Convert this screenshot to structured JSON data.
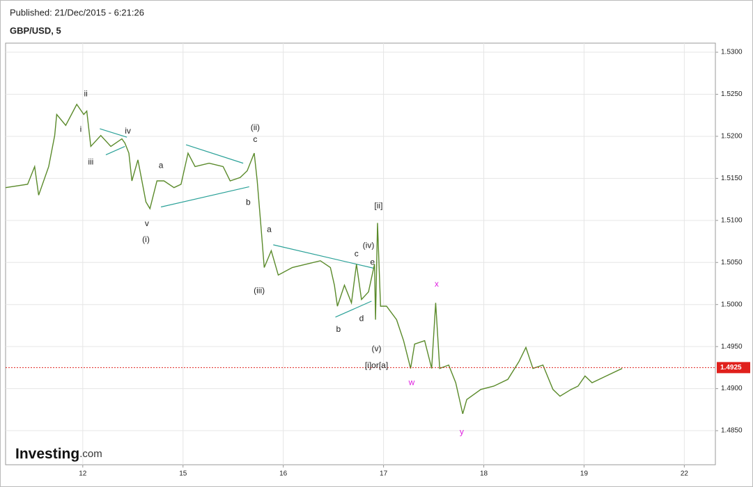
{
  "chart_data": {
    "type": "line",
    "published": "Published: 21/Dec/2015 - 6:21:26",
    "title": "GBP/USD, 5",
    "logo": "Investing",
    "logo_suffix": ".com",
    "xlim": [
      -0.77,
      6.31
    ],
    "xticks": [
      {
        "value": 0,
        "label": "12"
      },
      {
        "value": 1,
        "label": "15"
      },
      {
        "value": 2,
        "label": "16"
      },
      {
        "value": 3,
        "label": "17"
      },
      {
        "value": 4,
        "label": "18"
      },
      {
        "value": 5,
        "label": "19"
      },
      {
        "value": 6,
        "label": "22"
      }
    ],
    "ylim": [
      1.48095,
      1.53108
    ],
    "yticks": [
      {
        "value": 1.485,
        "label": "1.4850"
      },
      {
        "value": 1.49,
        "label": "1.4900"
      },
      {
        "value": 1.495,
        "label": "1.4950"
      },
      {
        "value": 1.5,
        "label": "1.5000"
      },
      {
        "value": 1.505,
        "label": "1.5050"
      },
      {
        "value": 1.51,
        "label": "1.5100"
      },
      {
        "value": 1.515,
        "label": "1.5150"
      },
      {
        "value": 1.52,
        "label": "1.5200"
      },
      {
        "value": 1.525,
        "label": "1.5250"
      },
      {
        "value": 1.53,
        "label": "1.5300"
      }
    ],
    "grid": true,
    "last_price": 1.4925,
    "last_price_color": "#e0201c",
    "series": [
      {
        "name": "GBP/USD",
        "color": "#5a8a2a",
        "x": [
          -0.77,
          -0.55,
          -0.48,
          -0.44,
          -0.34,
          -0.28,
          -0.26,
          -0.17,
          -0.06,
          0.01,
          0.04,
          0.08,
          0.18,
          0.28,
          0.39,
          0.42,
          0.46,
          0.49,
          0.55,
          0.63,
          0.67,
          0.74,
          0.81,
          0.91,
          0.98,
          1.05,
          1.12,
          1.26,
          1.4,
          1.47,
          1.57,
          1.64,
          1.71,
          1.74,
          1.78,
          1.81,
          1.88,
          1.95,
          2.09,
          2.23,
          2.37,
          2.47,
          2.51,
          2.54,
          2.61,
          2.68,
          2.73,
          2.78,
          2.85,
          2.91,
          2.92,
          2.94,
          2.97,
          3.03,
          3.13,
          3.2,
          3.27,
          3.31,
          3.41,
          3.48,
          3.52,
          3.56,
          3.65,
          3.72,
          3.79,
          3.83,
          3.97,
          4.1,
          4.24,
          4.35,
          4.42,
          4.49,
          4.59,
          4.69,
          4.76,
          4.87,
          4.94,
          5.01,
          5.08,
          5.22,
          5.38
        ],
        "values": [
          1.5139,
          1.5143,
          1.5164,
          1.513,
          1.5164,
          1.5201,
          1.5226,
          1.5213,
          1.5238,
          1.5226,
          1.523,
          1.5188,
          1.5201,
          1.5188,
          1.5197,
          1.5192,
          1.518,
          1.5147,
          1.5172,
          1.5122,
          1.5114,
          1.5147,
          1.5147,
          1.5139,
          1.5143,
          1.518,
          1.5164,
          1.5168,
          1.5164,
          1.5147,
          1.5151,
          1.5159,
          1.518,
          1.5147,
          1.5089,
          1.5044,
          1.5064,
          1.5035,
          1.5044,
          1.5048,
          1.5052,
          1.5044,
          1.5023,
          1.4998,
          1.5023,
          1.5002,
          1.5048,
          1.5006,
          1.5015,
          1.5048,
          1.4982,
          1.5097,
          1.4998,
          1.4998,
          1.4982,
          1.4957,
          1.4924,
          1.4953,
          1.4957,
          1.4924,
          1.5002,
          1.4924,
          1.4928,
          1.4907,
          1.487,
          1.4887,
          1.4899,
          1.4903,
          1.4911,
          1.4932,
          1.4949,
          1.4924,
          1.4928,
          1.4899,
          1.4891,
          1.4899,
          1.4903,
          1.4915,
          1.4907,
          1.4915,
          1.4924
        ]
      }
    ],
    "trendline_color": "#2aa198",
    "trendlines": [
      [
        0.17,
        1.5209,
        0.44,
        1.5199
      ],
      [
        0.23,
        1.5178,
        0.42,
        1.5188
      ],
      [
        1.03,
        1.519,
        1.6,
        1.5168
      ],
      [
        0.78,
        1.5116,
        1.66,
        1.514
      ],
      [
        1.9,
        1.5071,
        2.91,
        1.5043
      ],
      [
        2.52,
        1.4985,
        2.88,
        1.5004
      ]
    ],
    "annotations": [
      {
        "text": "ii",
        "x": 0.03,
        "y": 1.525,
        "color": "#222222"
      },
      {
        "text": "i",
        "x": -0.02,
        "y": 1.5208,
        "color": "#222222"
      },
      {
        "text": "iii",
        "x": 0.08,
        "y": 1.5169,
        "color": "#222222"
      },
      {
        "text": "iv",
        "x": 0.45,
        "y": 1.5206,
        "color": "#222222"
      },
      {
        "text": "a",
        "x": 0.78,
        "y": 1.5165,
        "color": "#222222"
      },
      {
        "text": "v",
        "x": 0.64,
        "y": 1.5096,
        "color": "#222222"
      },
      {
        "text": "(i)",
        "x": 0.63,
        "y": 1.5077,
        "color": "#222222"
      },
      {
        "text": "(ii)",
        "x": 1.72,
        "y": 1.521,
        "color": "#222222"
      },
      {
        "text": "c",
        "x": 1.72,
        "y": 1.5196,
        "color": "#222222"
      },
      {
        "text": "b",
        "x": 1.65,
        "y": 1.5121,
        "color": "#222222"
      },
      {
        "text": "a",
        "x": 1.86,
        "y": 1.5089,
        "color": "#222222"
      },
      {
        "text": "(iii)",
        "x": 1.76,
        "y": 1.5016,
        "color": "#222222"
      },
      {
        "text": "[ii]",
        "x": 2.95,
        "y": 1.5117,
        "color": "#222222"
      },
      {
        "text": "(iv)",
        "x": 2.85,
        "y": 1.507,
        "color": "#222222"
      },
      {
        "text": "c",
        "x": 2.73,
        "y": 1.506,
        "color": "#222222"
      },
      {
        "text": "e",
        "x": 2.89,
        "y": 1.505,
        "color": "#222222"
      },
      {
        "text": "b",
        "x": 2.55,
        "y": 1.497,
        "color": "#222222"
      },
      {
        "text": "d",
        "x": 2.78,
        "y": 1.4983,
        "color": "#222222"
      },
      {
        "text": "(v)",
        "x": 2.93,
        "y": 1.4947,
        "color": "#222222"
      },
      {
        "text": "[i]or[a]",
        "x": 2.93,
        "y": 1.4927,
        "color": "#222222"
      },
      {
        "text": "x",
        "x": 3.53,
        "y": 1.5024,
        "color": "#e020e0"
      },
      {
        "text": "w",
        "x": 3.28,
        "y": 1.4907,
        "color": "#e020e0"
      },
      {
        "text": "y",
        "x": 3.78,
        "y": 1.4848,
        "color": "#e020e0"
      }
    ]
  }
}
